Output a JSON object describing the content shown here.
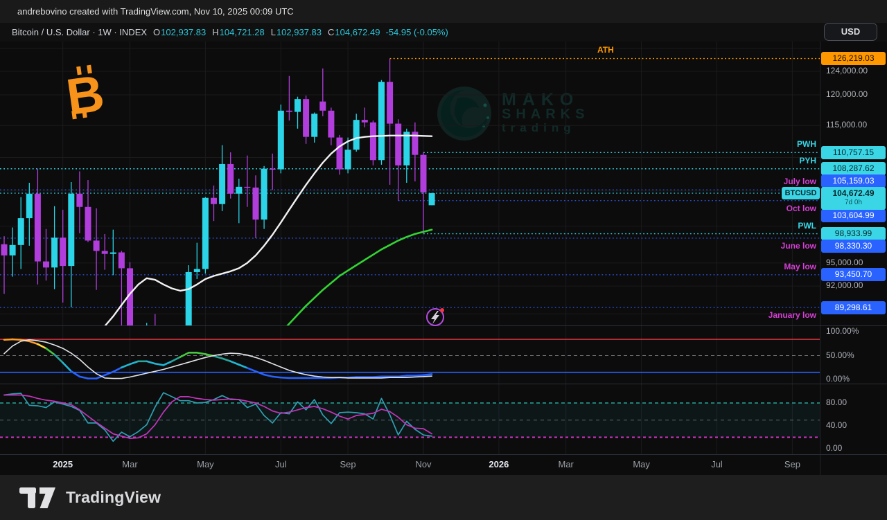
{
  "attribution": "andrebovino created with TradingView.com, Nov 10, 2025 00:09 UTC",
  "header": {
    "symbol_title": "Bitcoin / U.S. Dollar · 1W · INDEX",
    "ohlc": [
      {
        "label": "O",
        "value": "102,937.83"
      },
      {
        "label": "H",
        "value": "104,721.28"
      },
      {
        "label": "L",
        "value": "102,937.83"
      },
      {
        "label": "C",
        "value": "104,672.49"
      }
    ],
    "change": "-54.95 (-0.05%)",
    "currency_button": "USD"
  },
  "watermark": {
    "line1": "MAKO",
    "line2": "SHARKS",
    "line3": "trading"
  },
  "footer": {
    "brand": "TradingView"
  },
  "colors": {
    "up": "#2bd5e7",
    "down": "#b13ddd",
    "ma_white": "#f2f2f4",
    "ma_green": "#33d433",
    "accent_orange": "#ff9800",
    "accent_cyan": "#35d6e6",
    "line_blue": "#2a4fd6",
    "badge_blue": "#2962ff",
    "label_magenta": "#d53fd5",
    "red_line": "#f23645",
    "blue_line": "#2962ff",
    "stoch_k": "#2f9fb3",
    "stoch_d": "#c434bc"
  },
  "price_scale": {
    "gridline_prices": [
      128000,
      124000,
      120000,
      115000,
      110000,
      105000,
      100000,
      95000,
      92000,
      88500
    ],
    "labeled": [
      {
        "text": "124,000.00",
        "price": 124000
      },
      {
        "text": "120,000.00",
        "price": 120000
      },
      {
        "text": "115,000.00",
        "price": 115000
      },
      {
        "text": "95,000.00",
        "price": 95000
      },
      {
        "text": "92,000.00",
        "price": 92000
      }
    ],
    "pane2_labels": [
      {
        "text": "100.00%",
        "value": 100
      },
      {
        "text": "50.00%",
        "value": 50
      },
      {
        "text": "0.00%",
        "value": 0
      }
    ],
    "pane3_labels": [
      {
        "text": "80.00",
        "value": 80
      },
      {
        "text": "40.00",
        "value": 40
      },
      {
        "text": "0.00",
        "value": 0
      }
    ],
    "symbol_badge": "BTCUSD",
    "current": {
      "text": "104,672.49",
      "sub": "7d 0h"
    }
  },
  "time_axis": [
    {
      "label": "2025",
      "week": 7,
      "year": true
    },
    {
      "label": "Mar",
      "week": 15,
      "year": false
    },
    {
      "label": "May",
      "week": 24,
      "year": false
    },
    {
      "label": "Jul",
      "week": 33,
      "year": false
    },
    {
      "label": "Sep",
      "week": 41,
      "year": false
    },
    {
      "label": "Nov",
      "week": 50,
      "year": false
    },
    {
      "label": "2026",
      "week": 59,
      "year": true
    },
    {
      "label": "Mar",
      "week": 67,
      "year": false
    },
    {
      "label": "May",
      "week": 76,
      "year": false
    },
    {
      "label": "Jul",
      "week": 85,
      "year": false
    },
    {
      "label": "Sep",
      "week": 94,
      "year": false
    }
  ],
  "chart_data": {
    "type": "candlestick",
    "title": "Bitcoin / U.S. Dollar, 1 week, INDEX",
    "x_axis": "weekly bars, Nov 2024 - Sep 2026 visible",
    "y_axis": "price in USD, log scale",
    "candles": [
      [
        97500,
        98600,
        91000,
        96000
      ],
      [
        96000,
        99800,
        93200,
        97400
      ],
      [
        97400,
        104100,
        94200,
        101100
      ],
      [
        101100,
        106200,
        97300,
        104600
      ],
      [
        104600,
        108290,
        92200,
        95200
      ],
      [
        95200,
        99600,
        92700,
        94400
      ],
      [
        94400,
        102800,
        91600,
        98400
      ],
      [
        98400,
        102300,
        89900,
        94600
      ],
      [
        94600,
        106300,
        89299,
        104600
      ],
      [
        104600,
        107900,
        99000,
        102700
      ],
      [
        102700,
        106600,
        97800,
        98000
      ],
      [
        98000,
        102500,
        91500,
        96600
      ],
      [
        96600,
        98900,
        94100,
        96200
      ],
      [
        96200,
        99500,
        93400,
        96400
      ],
      [
        96400,
        96600,
        78300,
        94300
      ],
      [
        94300,
        95100,
        79900,
        80700
      ],
      [
        80700,
        85100,
        76600,
        82600
      ],
      [
        82600,
        87400,
        81100,
        86100
      ],
      [
        86100,
        88500,
        81600,
        82500
      ],
      [
        82500,
        86800,
        81200,
        83800
      ],
      [
        83800,
        86000,
        74400,
        84500
      ],
      [
        84500,
        85500,
        83000,
        85100
      ],
      [
        85100,
        94700,
        84300,
        93800
      ],
      [
        93800,
        97700,
        92900,
        94200
      ],
      [
        94200,
        104100,
        93600,
        104000
      ],
      [
        104000,
        105800,
        100700,
        103100
      ],
      [
        103100,
        111900,
        102100,
        109000
      ],
      [
        109000,
        110800,
        103900,
        104600
      ],
      [
        104600,
        106800,
        100400,
        105600
      ],
      [
        105600,
        110300,
        102700,
        105500
      ],
      [
        105500,
        107300,
        98330,
        100900
      ],
      [
        100900,
        108700,
        99600,
        108300
      ],
      [
        108300,
        110600,
        105159,
        108200
      ],
      [
        108200,
        118400,
        107600,
        117400
      ],
      [
        117400,
        123200,
        115800,
        117200
      ],
      [
        117200,
        119700,
        114500,
        119300
      ],
      [
        119300,
        119900,
        112100,
        113200
      ],
      [
        113200,
        117100,
        112300,
        116900
      ],
      [
        118900,
        124500,
        116500,
        117400
      ],
      [
        117400,
        117900,
        111900,
        113100
      ],
      [
        113100,
        113500,
        107400,
        108200
      ],
      [
        108200,
        113100,
        107600,
        111200
      ],
      [
        111200,
        116900,
        110900,
        115900
      ],
      [
        115900,
        117900,
        114700,
        115500
      ],
      [
        115500,
        115800,
        108800,
        109600
      ],
      [
        109600,
        122500,
        108900,
        122200
      ],
      [
        122200,
        126219,
        105900,
        115300
      ],
      [
        115300,
        116000,
        103605,
        108800
      ],
      [
        108800,
        114500,
        106200,
        114000
      ],
      [
        114000,
        115500,
        106400,
        110400
      ],
      [
        110400,
        110757,
        98934,
        104800
      ],
      [
        102938,
        104721,
        102938,
        104672
      ]
    ],
    "ma_white": {
      "start": 11,
      "values": [
        86000,
        87000,
        88200,
        89600,
        91000,
        92200,
        93000,
        92800,
        92200,
        91700,
        91400,
        91600,
        92200,
        92900,
        93300,
        93600,
        93900,
        94300,
        95000,
        96000,
        97300,
        98800,
        100500,
        102300,
        104100,
        105900,
        107600,
        109200,
        110600,
        111700,
        112500,
        113000,
        113200,
        113300,
        113350,
        113400,
        113400,
        113400,
        113400,
        113350,
        113300
      ]
    },
    "ma_green": {
      "start": 33,
      "values": [
        86200,
        87300,
        88400,
        89500,
        90500,
        91500,
        92400,
        93300,
        94000,
        94700,
        95400,
        96100,
        96800,
        97400,
        98000,
        98500,
        98900,
        99200,
        99500
      ]
    },
    "levels": [
      {
        "id": "ath",
        "label": "ATH",
        "text": "126,219.03",
        "price": 126219.03,
        "style": "orange",
        "from_week": 46,
        "full": false,
        "label_side": "above",
        "badge_dy": 0
      },
      {
        "id": "pwh",
        "label": "PWH",
        "text": "110,757.15",
        "price": 110757.15,
        "style": "cyan",
        "from_week": 50,
        "full": false,
        "label_side": "above",
        "badge_dy": 0
      },
      {
        "id": "pyh",
        "label": "PYH",
        "text": "108,287.62",
        "price": 108287.62,
        "style": "cyan",
        "from_week": 4,
        "full": true,
        "label_side": "above",
        "badge_dy": 0
      },
      {
        "id": "july_low",
        "label": "July low",
        "text": "105,159.03",
        "price": 105159.03,
        "style": "blue",
        "from_week": 0,
        "full": true,
        "label_side": "above",
        "badge_dy": -13
      },
      {
        "id": "oct_low",
        "label": "Oct low",
        "text": "103,604.99",
        "price": 103604.99,
        "style": "blue",
        "from_week": 47,
        "full": false,
        "label_side": "below",
        "badge_dy": 22
      },
      {
        "id": "pwl",
        "label": "PWL",
        "text": "98,933.99",
        "price": 98933.99,
        "style": "cyan",
        "from_week": 50,
        "full": false,
        "label_side": "above",
        "badge_dy": 0
      },
      {
        "id": "june_low",
        "label": "June low",
        "text": "98,330.30",
        "price": 98330.3,
        "style": "blue",
        "from_week": 0,
        "full": true,
        "label_side": "below",
        "badge_dy": 12
      },
      {
        "id": "may_low",
        "label": "May low",
        "text": "93,450.70",
        "price": 93450.7,
        "style": "blue",
        "from_week": 0,
        "full": true,
        "label_side": "above",
        "badge_dy": 0
      },
      {
        "id": "january_low",
        "label": "January low",
        "text": "89,298.61",
        "price": 89298.61,
        "style": "blue",
        "from_week": 0,
        "full": true,
        "label_side": "below",
        "badge_dy": 0
      }
    ],
    "close_line": {
      "price": 104672.49
    },
    "pane2": {
      "red_level": 84,
      "mid_level": 50,
      "blue_level": 15,
      "rainbow": [
        83,
        84,
        83,
        80,
        74,
        65,
        52,
        35,
        17,
        6,
        2,
        2,
        9,
        16,
        25,
        32,
        38,
        38,
        33,
        30,
        38,
        47,
        56,
        56,
        53,
        49,
        44,
        38,
        31,
        24,
        17,
        10,
        6,
        4,
        3,
        3,
        3,
        3,
        3,
        3,
        4,
        4,
        5,
        5,
        5,
        6,
        6,
        6,
        8,
        8,
        9,
        11
      ],
      "white": [
        54,
        70,
        80,
        83,
        81,
        78,
        72,
        65,
        55,
        42,
        26,
        12,
        3,
        2,
        2,
        5,
        9,
        13,
        17,
        21,
        26,
        31,
        36,
        41,
        46,
        50,
        53,
        55,
        54,
        51,
        46,
        40,
        33,
        26,
        19,
        14,
        10,
        7,
        5,
        4,
        4,
        3,
        3,
        3,
        3,
        3,
        4,
        4,
        4,
        5,
        6,
        7
      ]
    },
    "pane3": {
      "upper": 80,
      "mid": 50,
      "lower": 20,
      "k": [
        94,
        96,
        97,
        76,
        75,
        72,
        82,
        78,
        74,
        67,
        45,
        45,
        33,
        13,
        29,
        21,
        30,
        42,
        73,
        98,
        91,
        84,
        84,
        80,
        81,
        86,
        93,
        86,
        86,
        72,
        78,
        58,
        45,
        63,
        61,
        82,
        68,
        86,
        59,
        44,
        63,
        64,
        63,
        61,
        52,
        88,
        59,
        24,
        48,
        34,
        24,
        22
      ],
      "d": [
        94,
        94,
        94,
        92,
        88,
        85,
        83,
        80,
        77,
        68,
        57,
        46,
        36,
        26,
        22,
        18,
        19,
        26,
        42,
        64,
        82,
        91,
        91,
        88,
        86,
        85,
        86,
        87,
        86,
        83,
        80,
        74,
        66,
        62,
        64,
        68,
        72,
        74,
        70,
        64,
        57,
        52,
        58,
        60,
        62,
        69,
        65,
        55,
        42,
        36,
        35,
        26
      ]
    }
  }
}
